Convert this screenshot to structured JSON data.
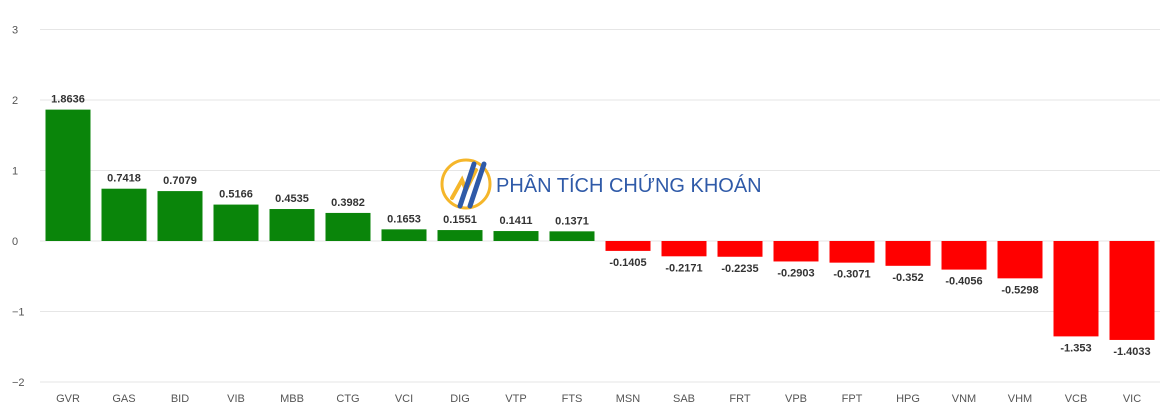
{
  "watermark": {
    "text": "PHÂN TÍCH CHỨNG KHOÁN",
    "icon": "chart-logo-icon",
    "colors": {
      "text": "#2f5aa8",
      "accent": "#f5b62a"
    }
  },
  "chart_data": {
    "type": "bar",
    "categories": [
      "GVR",
      "GAS",
      "BID",
      "VIB",
      "MBB",
      "CTG",
      "VCI",
      "DIG",
      "VTP",
      "FTS",
      "MSN",
      "SAB",
      "FRT",
      "VPB",
      "FPT",
      "HPG",
      "VNM",
      "VHM",
      "VCB",
      "VIC"
    ],
    "values": [
      1.8636,
      0.7418,
      0.7079,
      0.5166,
      0.4535,
      0.3982,
      0.1653,
      0.1551,
      0.1411,
      0.1371,
      -0.1405,
      -0.2171,
      -0.2235,
      -0.2903,
      -0.3071,
      -0.352,
      -0.4056,
      -0.5298,
      -1.353,
      -1.4033
    ],
    "data_labels": [
      "1.8636",
      "0.7418",
      "0.7079",
      "0.5166",
      "0.4535",
      "0.3982",
      "0.1653",
      "0.1551",
      "0.1411",
      "0.1371",
      "-0.1405",
      "-0.2171",
      "-0.2235",
      "-0.2903",
      "-0.3071",
      "-0.352",
      "-0.4056",
      "-0.5298",
      "-1.353",
      "-1.4033"
    ],
    "yticks": [
      "3",
      "2",
      "1",
      "0",
      "−1",
      "−2"
    ],
    "ytick_values": [
      3,
      2,
      1,
      0,
      -1,
      -2
    ],
    "ylim": [
      -2,
      3
    ],
    "title": "",
    "xlabel": "",
    "ylabel": "",
    "grid": true,
    "colors": {
      "positive": "#0a850a",
      "negative": "#ff0000",
      "grid": "#e6e6e6"
    }
  }
}
